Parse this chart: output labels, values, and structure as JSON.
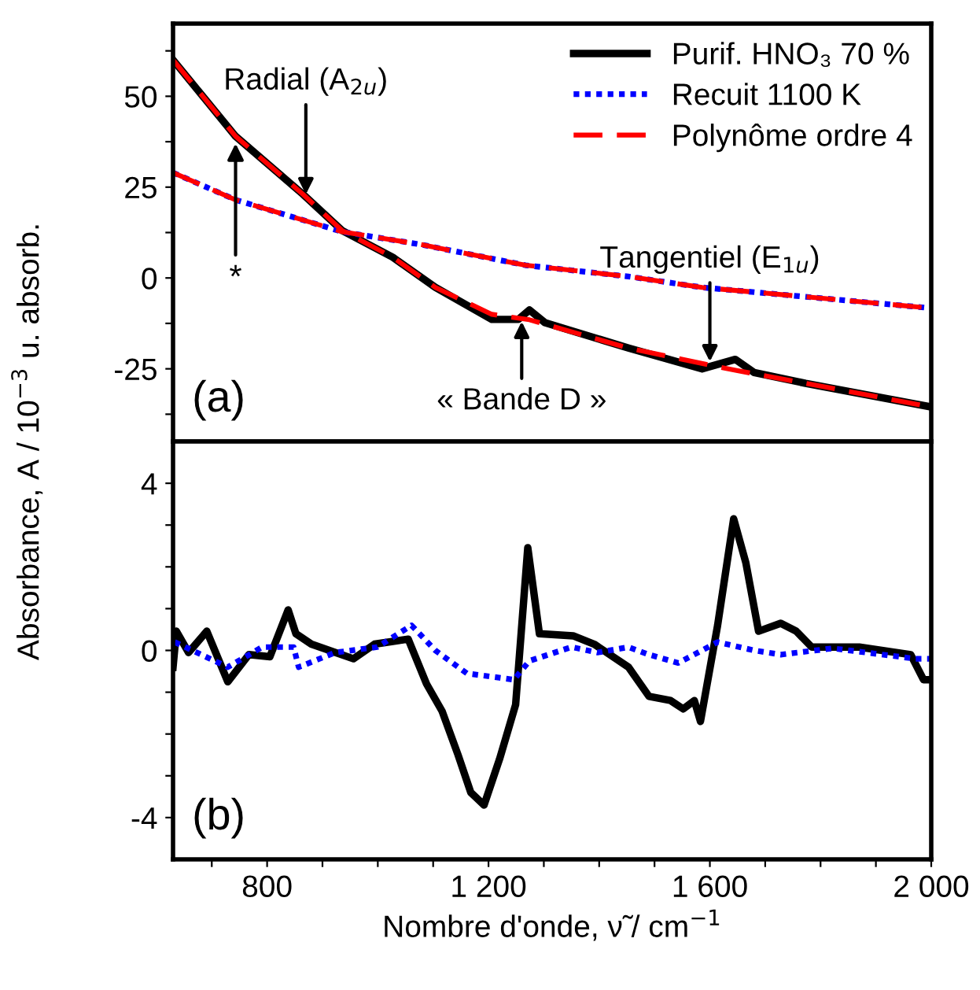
{
  "chart_data": [
    {
      "type": "line",
      "ylabel": "Absorbance, A / 10$^{−3}$ u. absorb.",
      "xlim": [
        630,
        2000
      ],
      "ylim": [
        -45,
        70
      ],
      "xticks": [
        {
          "value": 700,
          "label": null
        },
        {
          "value": 800,
          "label": null
        },
        {
          "value": 900,
          "label": null
        },
        {
          "value": 1000,
          "label": null
        },
        {
          "value": 1100,
          "label": null
        },
        {
          "value": 1200,
          "label": null
        },
        {
          "value": 1300,
          "label": null
        },
        {
          "value": 1400,
          "label": null
        },
        {
          "value": 1500,
          "label": null
        },
        {
          "value": 1600,
          "label": null
        },
        {
          "value": 1700,
          "label": null
        },
        {
          "value": 1800,
          "label": null
        },
        {
          "value": 1900,
          "label": null
        },
        {
          "value": 2000,
          "label": null
        }
      ],
      "yticks": [
        {
          "value": -37.5,
          "label": null
        },
        -25,
        {
          "value": -12.5,
          "label": null
        },
        0,
        {
          "value": 12.5,
          "label": null
        },
        25,
        {
          "value": 37.5,
          "label": null
        },
        50,
        {
          "value": 62.5,
          "label": null
        }
      ],
      "tick_labels": "y",
      "legend": "top right",
      "grid": false,
      "series": [
        {
          "name": "Purif. HNO₃ 70 %",
          "color": "#000000",
          "line_style": "solid",
          "x": [
            630,
            743,
            865,
            936,
            1027,
            1104,
            1206,
            1254,
            1274,
            1302,
            1453,
            1586,
            1646,
            1680,
            1773,
            2000
          ],
          "values": [
            60,
            39,
            23,
            13,
            5.7,
            -2.6,
            -11.4,
            -11.4,
            -8.8,
            -12.3,
            -19.3,
            -25,
            -22.4,
            -26,
            -29,
            -35.5
          ]
        },
        {
          "name": "Recuit 1100 K",
          "color": "#0000ff",
          "line_style": "dotted",
          "x": [
            630,
            743,
            936,
            1078,
            1267,
            1453,
            1586,
            2000
          ],
          "values": [
            29,
            21.5,
            12.7,
            9.2,
            3.5,
            0.4,
            -2.6,
            -8.3
          ]
        },
        {
          "name": "Polynôme ordre 4",
          "color": "#ff0000",
          "line_style": "dashed",
          "x": [
            630,
            743,
            865,
            936,
            1027,
            1104,
            1206,
            1274,
            1453,
            1600,
            1650,
            1773,
            2000
          ],
          "values": [
            60,
            39,
            23,
            13,
            5.7,
            -2.6,
            -10,
            -11.5,
            -19.3,
            -24,
            -25.5,
            -29,
            -35.5
          ]
        },
        {
          "color": "#ff0000",
          "line_style": "dashed",
          "x": [
            630,
            743,
            936,
            1078,
            1267,
            1453,
            1586,
            2000
          ],
          "values": [
            29,
            21.5,
            12.7,
            9.2,
            3.5,
            0.4,
            -2.6,
            -8.3
          ]
        }
      ],
      "annotations": [
        {
          "text": "Radial (A$_{2u}$)",
          "x": 870,
          "y": 23
        },
        {
          "text": "*",
          "x": 743,
          "y": 37
        },
        {
          "text": "« Bande D »",
          "x": 1260,
          "y": -12
        },
        {
          "text": "Tangentiel (E$_{1u}$)",
          "x": 1600,
          "y": -23
        },
        "(a)"
      ]
    },
    {
      "type": "line",
      "xlabel": "Nombre d'onde, ν̃ / cm$^{−1}$",
      "xlim": [
        630,
        2000
      ],
      "ylim": [
        -5,
        5
      ],
      "xticks": [
        {
          "value": 700,
          "label": null
        },
        {
          "value": 800,
          "label": "800"
        },
        {
          "value": 900,
          "label": null
        },
        {
          "value": 1000,
          "label": null
        },
        {
          "value": 1100,
          "label": null
        },
        {
          "value": 1200,
          "label": "1 200"
        },
        {
          "value": 1300,
          "label": null
        },
        {
          "value": 1400,
          "label": null
        },
        {
          "value": 1500,
          "label": null
        },
        {
          "value": 1600,
          "label": "1 600"
        },
        {
          "value": 1700,
          "label": null
        },
        {
          "value": 1800,
          "label": null
        },
        {
          "value": 1900,
          "label": null
        },
        {
          "value": 2000,
          "label": "2 000"
        }
      ],
      "yticks": [
        -4,
        {
          "value": -3,
          "label": null
        },
        {
          "value": -2,
          "label": null
        },
        {
          "value": -1,
          "label": null
        },
        0,
        {
          "value": 1,
          "label": null
        },
        {
          "value": 2,
          "label": null
        },
        {
          "value": 3,
          "label": null
        },
        4
      ],
      "grid": false,
      "series": [
        {
          "color": "#000000",
          "line_style": "solid",
          "x": [
            630,
            636,
            658,
            691,
            729,
            767,
            805,
            838,
            852,
            880,
            956,
            994,
            1055,
            1088,
            1116,
            1145,
            1168,
            1192,
            1220,
            1249,
            1271,
            1292,
            1353,
            1391,
            1453,
            1490,
            1529,
            1552,
            1572,
            1583,
            1614,
            1643,
            1665,
            1688,
            1728,
            1756,
            1784,
            1870,
            1963,
            1986,
            2000
          ],
          "values": [
            -0.4,
            0.46,
            -0.05,
            0.46,
            -0.75,
            -0.1,
            -0.15,
            0.97,
            0.4,
            0.15,
            -0.2,
            0.15,
            0.27,
            -0.8,
            -1.45,
            -2.5,
            -3.4,
            -3.7,
            -2.6,
            -1.3,
            2.46,
            0.4,
            0.35,
            0.15,
            -0.4,
            -1.1,
            -1.2,
            -1.4,
            -1.2,
            -1.7,
            0.6,
            3.15,
            2.1,
            0.46,
            0.65,
            0.46,
            0.08,
            0.08,
            -0.1,
            -0.7,
            -0.7
          ]
        },
        {
          "color": "#0000ff",
          "line_style": "dotted",
          "x": [
            633,
            681,
            729,
            791,
            848,
            857,
            923,
            999,
            1061,
            1104,
            1161,
            1246,
            1274,
            1350,
            1397,
            1453,
            1490,
            1543,
            1614,
            1680,
            1728,
            1822,
            1972,
            2000
          ],
          "values": [
            0.2,
            -0.1,
            -0.4,
            0.08,
            0.08,
            -0.4,
            -0.05,
            0.08,
            0.6,
            0,
            -0.55,
            -0.7,
            -0.25,
            0.08,
            -0.05,
            0.08,
            -0.1,
            -0.3,
            0.2,
            0,
            -0.1,
            0.05,
            -0.2,
            -0.2
          ]
        }
      ],
      "annotations": [
        "(b)"
      ]
    }
  ]
}
